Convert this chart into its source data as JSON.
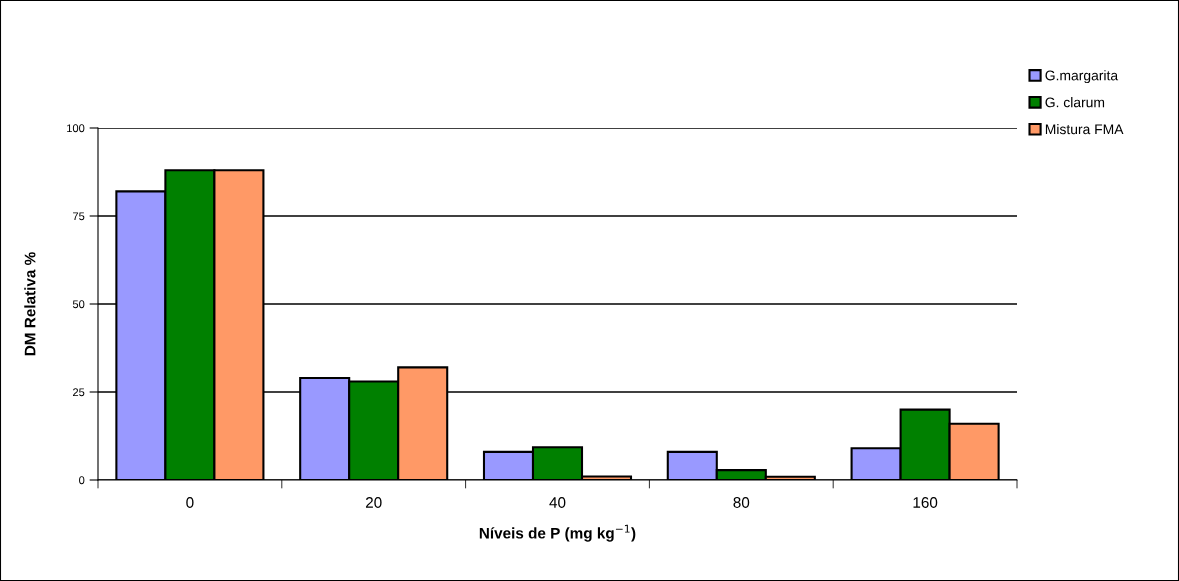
{
  "chart_data": {
    "type": "bar",
    "xlabel": "Níveis de P (mg kg$^{−1}$)",
    "ylabel": "DM Relativa %",
    "categories": [
      "0",
      "20",
      "40",
      "80",
      "160"
    ],
    "series": [
      {
        "name": "G.margarita",
        "color": "#9999ff",
        "values": [
          82,
          29,
          8,
          8,
          9
        ]
      },
      {
        "name": "G. clarum",
        "color": "#008000",
        "values": [
          88,
          28,
          9.3,
          2.8,
          20
        ]
      },
      {
        "name": "Mistura FMA",
        "color": "#ff9966",
        "values": [
          88,
          32,
          1,
          0.9,
          16
        ]
      }
    ],
    "ylim": [
      0,
      100
    ],
    "yticks": [
      0,
      25,
      50,
      75,
      100
    ],
    "grid": "y",
    "legend": "top right"
  }
}
